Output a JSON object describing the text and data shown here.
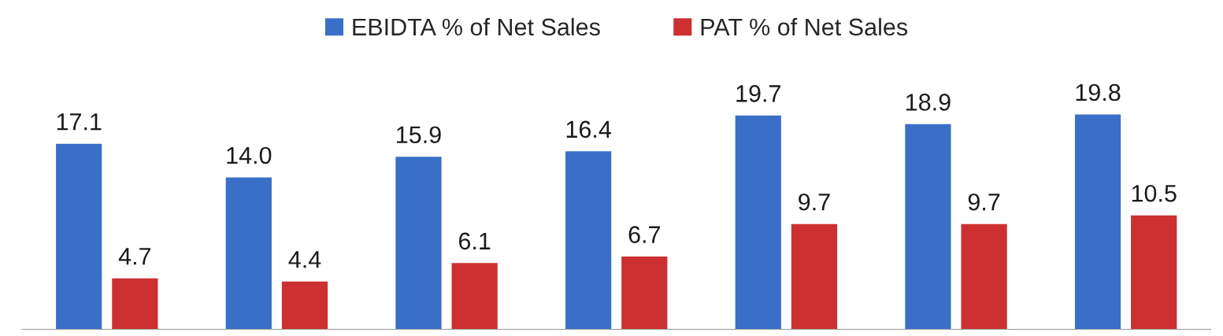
{
  "chart_data": {
    "type": "bar",
    "categories": [
      null,
      null,
      null,
      null,
      null,
      null,
      null
    ],
    "series": [
      {
        "name": "EBIDTA % of Net Sales",
        "color": "#3a6fc8",
        "values": [
          17.1,
          14.0,
          15.9,
          16.4,
          19.7,
          18.9,
          19.8
        ],
        "value_labels": [
          "17.1",
          "14.0",
          "15.9",
          "16.4",
          "19.7",
          "18.9",
          "19.8"
        ]
      },
      {
        "name": "PAT % of Net Sales",
        "color": "#cc3030",
        "values": [
          4.7,
          4.4,
          6.1,
          6.7,
          9.7,
          9.7,
          10.5
        ],
        "value_labels": [
          "4.7",
          "4.4",
          "6.1",
          "6.7",
          "9.7",
          "9.7",
          "10.5"
        ]
      }
    ],
    "legend": "top"
  }
}
